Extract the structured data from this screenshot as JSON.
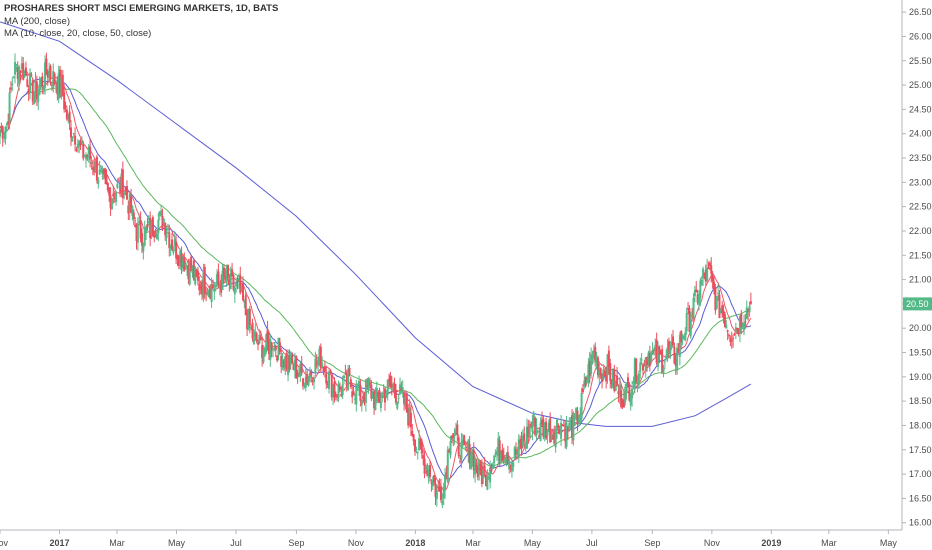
{
  "legend": {
    "title": "PROSHARES SHORT MSCI EMERGING MARKETS, 1D, BATS",
    "ma200": "MA (200, close)",
    "ma_multi": "MA (10, close, 20, close, 50, close)"
  },
  "colors": {
    "up": "#53b987",
    "down": "#eb4d5c",
    "ma10": "#e85a6a",
    "ma20": "#5b5bd6",
    "ma50": "#5cb85c",
    "ma200": "#5b5bd6",
    "last_badge": "#53b987"
  },
  "chart_data": {
    "type": "line",
    "subtype": "candlestick",
    "title": "PROSHARES SHORT MSCI EMERGING MARKETS, 1D, BATS",
    "y_axis": {
      "range": [
        15.85,
        26.75
      ],
      "ticks": [
        "16.00",
        "16.50",
        "17.00",
        "17.50",
        "18.00",
        "18.50",
        "19.00",
        "19.50",
        "20.00",
        "20.50",
        "21.00",
        "21.50",
        "22.00",
        "22.50",
        "23.00",
        "23.50",
        "24.00",
        "24.50",
        "25.00",
        "25.50",
        "26.00",
        "26.50"
      ],
      "position": "right"
    },
    "x_axis": {
      "range": [
        "2016-11-01",
        "2019-05-15"
      ],
      "ticks": [
        {
          "label": "Nov",
          "date": "2016-11-01",
          "bold": false
        },
        {
          "label": "2017",
          "date": "2017-01-01",
          "bold": true
        },
        {
          "label": "Mar",
          "date": "2017-03-01",
          "bold": false
        },
        {
          "label": "May",
          "date": "2017-05-01",
          "bold": false
        },
        {
          "label": "Jul",
          "date": "2017-07-01",
          "bold": false
        },
        {
          "label": "Sep",
          "date": "2017-09-01",
          "bold": false
        },
        {
          "label": "Nov",
          "date": "2017-11-01",
          "bold": false
        },
        {
          "label": "2018",
          "date": "2018-01-01",
          "bold": true
        },
        {
          "label": "Mar",
          "date": "2018-03-01",
          "bold": false
        },
        {
          "label": "May",
          "date": "2018-05-01",
          "bold": false
        },
        {
          "label": "Jul",
          "date": "2018-07-01",
          "bold": false
        },
        {
          "label": "Sep",
          "date": "2018-09-01",
          "bold": false
        },
        {
          "label": "Nov",
          "date": "2018-11-01",
          "bold": false
        },
        {
          "label": "2019",
          "date": "2019-01-01",
          "bold": true
        },
        {
          "label": "Mar",
          "date": "2019-03-01",
          "bold": false
        },
        {
          "label": "May",
          "date": "2019-05-01",
          "bold": false
        }
      ]
    },
    "last_value": "20.50",
    "grid": false,
    "close_series": [
      {
        "date": "2016-11-01",
        "value": 24.05
      },
      {
        "date": "2016-11-08",
        "value": 24.2
      },
      {
        "date": "2016-11-15",
        "value": 25.3
      },
      {
        "date": "2016-11-22",
        "value": 25.4
      },
      {
        "date": "2016-11-29",
        "value": 25.15
      },
      {
        "date": "2016-12-06",
        "value": 24.8
      },
      {
        "date": "2016-12-13",
        "value": 25.05
      },
      {
        "date": "2016-12-20",
        "value": 25.3
      },
      {
        "date": "2016-12-27",
        "value": 25.1
      },
      {
        "date": "2017-01-03",
        "value": 24.95
      },
      {
        "date": "2017-01-10",
        "value": 24.2
      },
      {
        "date": "2017-01-17",
        "value": 24.0
      },
      {
        "date": "2017-01-24",
        "value": 23.6
      },
      {
        "date": "2017-01-31",
        "value": 23.55
      },
      {
        "date": "2017-02-07",
        "value": 23.3
      },
      {
        "date": "2017-02-14",
        "value": 23.0
      },
      {
        "date": "2017-02-21",
        "value": 22.7
      },
      {
        "date": "2017-02-28",
        "value": 22.85
      },
      {
        "date": "2017-03-07",
        "value": 22.95
      },
      {
        "date": "2017-03-14",
        "value": 22.5
      },
      {
        "date": "2017-03-21",
        "value": 22.0
      },
      {
        "date": "2017-03-28",
        "value": 21.95
      },
      {
        "date": "2017-04-04",
        "value": 22.0
      },
      {
        "date": "2017-04-11",
        "value": 22.2
      },
      {
        "date": "2017-04-18",
        "value": 22.25
      },
      {
        "date": "2017-04-25",
        "value": 21.8
      },
      {
        "date": "2017-05-02",
        "value": 21.6
      },
      {
        "date": "2017-05-09",
        "value": 21.4
      },
      {
        "date": "2017-05-16",
        "value": 21.2
      },
      {
        "date": "2017-05-23",
        "value": 20.9
      },
      {
        "date": "2017-05-30",
        "value": 20.95
      },
      {
        "date": "2017-06-06",
        "value": 20.85
      },
      {
        "date": "2017-06-13",
        "value": 20.9
      },
      {
        "date": "2017-06-20",
        "value": 21.0
      },
      {
        "date": "2017-06-27",
        "value": 20.85
      },
      {
        "date": "2017-07-04",
        "value": 20.8
      },
      {
        "date": "2017-07-11",
        "value": 20.3
      },
      {
        "date": "2017-07-18",
        "value": 19.85
      },
      {
        "date": "2017-07-25",
        "value": 19.65
      },
      {
        "date": "2017-08-01",
        "value": 19.6
      },
      {
        "date": "2017-08-08",
        "value": 19.75
      },
      {
        "date": "2017-08-15",
        "value": 19.5
      },
      {
        "date": "2017-08-22",
        "value": 19.3
      },
      {
        "date": "2017-08-29",
        "value": 19.2
      },
      {
        "date": "2017-09-05",
        "value": 19.05
      },
      {
        "date": "2017-09-12",
        "value": 19.0
      },
      {
        "date": "2017-09-19",
        "value": 19.2
      },
      {
        "date": "2017-09-26",
        "value": 19.4
      },
      {
        "date": "2017-10-03",
        "value": 19.05
      },
      {
        "date": "2017-10-10",
        "value": 18.7
      },
      {
        "date": "2017-10-17",
        "value": 18.75
      },
      {
        "date": "2017-10-24",
        "value": 18.9
      },
      {
        "date": "2017-10-31",
        "value": 18.75
      },
      {
        "date": "2017-11-07",
        "value": 18.6
      },
      {
        "date": "2017-11-14",
        "value": 18.8
      },
      {
        "date": "2017-11-21",
        "value": 18.5
      },
      {
        "date": "2017-11-28",
        "value": 18.6
      },
      {
        "date": "2017-12-05",
        "value": 18.8
      },
      {
        "date": "2017-12-12",
        "value": 18.7
      },
      {
        "date": "2017-12-19",
        "value": 18.55
      },
      {
        "date": "2017-12-26",
        "value": 18.15
      },
      {
        "date": "2018-01-02",
        "value": 17.6
      },
      {
        "date": "2018-01-09",
        "value": 17.3
      },
      {
        "date": "2018-01-16",
        "value": 17.05
      },
      {
        "date": "2018-01-23",
        "value": 16.6
      },
      {
        "date": "2018-01-30",
        "value": 16.75
      },
      {
        "date": "2018-02-06",
        "value": 17.9
      },
      {
        "date": "2018-02-13",
        "value": 17.6
      },
      {
        "date": "2018-02-20",
        "value": 17.4
      },
      {
        "date": "2018-02-27",
        "value": 17.5
      },
      {
        "date": "2018-03-06",
        "value": 17.05
      },
      {
        "date": "2018-03-13",
        "value": 16.95
      },
      {
        "date": "2018-03-20",
        "value": 17.3
      },
      {
        "date": "2018-03-27",
        "value": 17.5
      },
      {
        "date": "2018-04-03",
        "value": 17.5
      },
      {
        "date": "2018-04-10",
        "value": 17.3
      },
      {
        "date": "2018-04-17",
        "value": 17.5
      },
      {
        "date": "2018-04-24",
        "value": 17.75
      },
      {
        "date": "2018-05-01",
        "value": 18.1
      },
      {
        "date": "2018-05-08",
        "value": 17.9
      },
      {
        "date": "2018-05-15",
        "value": 17.95
      },
      {
        "date": "2018-05-22",
        "value": 17.85
      },
      {
        "date": "2018-05-29",
        "value": 18.1
      },
      {
        "date": "2018-06-05",
        "value": 17.9
      },
      {
        "date": "2018-06-12",
        "value": 18.0
      },
      {
        "date": "2018-06-19",
        "value": 18.3
      },
      {
        "date": "2018-06-26",
        "value": 19.0
      },
      {
        "date": "2018-07-03",
        "value": 19.5
      },
      {
        "date": "2018-07-10",
        "value": 19.1
      },
      {
        "date": "2018-07-17",
        "value": 19.2
      },
      {
        "date": "2018-07-24",
        "value": 18.85
      },
      {
        "date": "2018-07-31",
        "value": 18.6
      },
      {
        "date": "2018-08-07",
        "value": 18.7
      },
      {
        "date": "2018-08-14",
        "value": 19.1
      },
      {
        "date": "2018-08-21",
        "value": 19.3
      },
      {
        "date": "2018-08-28",
        "value": 19.5
      },
      {
        "date": "2018-09-04",
        "value": 19.4
      },
      {
        "date": "2018-09-11",
        "value": 19.35
      },
      {
        "date": "2018-09-18",
        "value": 19.5
      },
      {
        "date": "2018-09-25",
        "value": 19.4
      },
      {
        "date": "2018-10-02",
        "value": 19.9
      },
      {
        "date": "2018-10-09",
        "value": 20.2
      },
      {
        "date": "2018-10-16",
        "value": 20.6
      },
      {
        "date": "2018-10-23",
        "value": 21.05
      },
      {
        "date": "2018-10-30",
        "value": 21.1
      },
      {
        "date": "2018-11-06",
        "value": 20.5
      },
      {
        "date": "2018-11-13",
        "value": 20.3
      },
      {
        "date": "2018-11-20",
        "value": 19.9
      },
      {
        "date": "2018-11-27",
        "value": 20.05
      },
      {
        "date": "2018-12-04",
        "value": 20.3
      },
      {
        "date": "2018-12-11",
        "value": 20.5
      }
    ],
    "ma200_series": [
      {
        "date": "2016-11-01",
        "value": 26.3
      },
      {
        "date": "2017-01-01",
        "value": 25.9
      },
      {
        "date": "2017-03-01",
        "value": 25.1
      },
      {
        "date": "2017-05-01",
        "value": 24.2
      },
      {
        "date": "2017-07-01",
        "value": 23.3
      },
      {
        "date": "2017-09-01",
        "value": 22.3
      },
      {
        "date": "2017-11-01",
        "value": 21.1
      },
      {
        "date": "2018-01-01",
        "value": 19.8
      },
      {
        "date": "2018-03-01",
        "value": 18.8
      },
      {
        "date": "2018-05-01",
        "value": 18.25
      },
      {
        "date": "2018-06-15",
        "value": 18.05
      },
      {
        "date": "2018-07-15",
        "value": 17.98
      },
      {
        "date": "2018-09-01",
        "value": 17.98
      },
      {
        "date": "2018-10-15",
        "value": 18.2
      },
      {
        "date": "2018-11-15",
        "value": 18.55
      },
      {
        "date": "2018-12-11",
        "value": 18.85
      }
    ]
  }
}
